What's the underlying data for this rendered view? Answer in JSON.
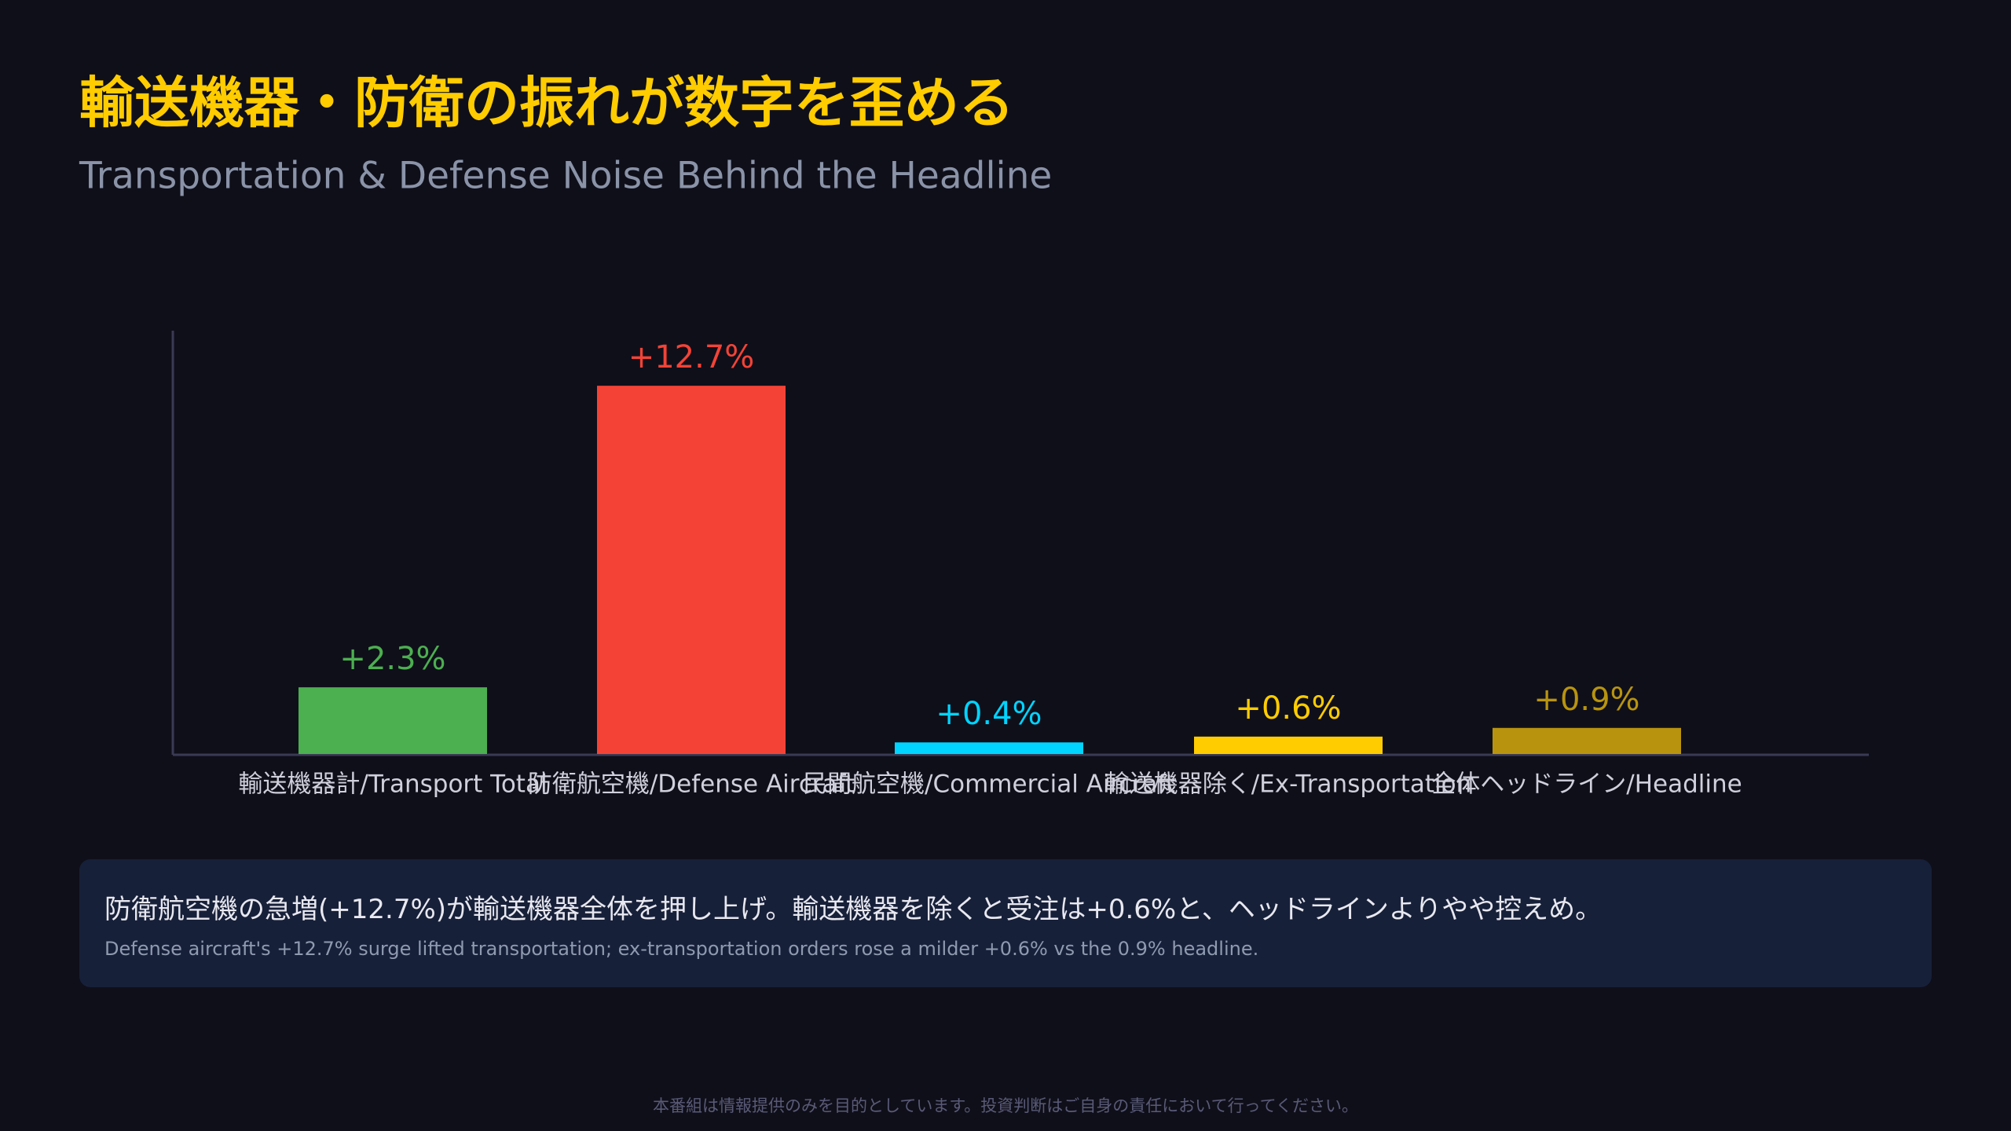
{
  "chart_data": {
    "type": "bar",
    "title": "輸送機器・防衛の振れが数字を歪める",
    "subtitle": "Transportation & Defense Noise Behind the Headline",
    "categories": [
      "輸送機器計/Transport Total",
      "防衛航空機/Defense Aircraft",
      "民間航空機/Commercial Aircraft",
      "輸送機器除く/Ex-Transportation",
      "全体ヘッドライン/Headline"
    ],
    "values": [
      2.3,
      12.7,
      0.4,
      0.6,
      0.9
    ],
    "value_labels": [
      "+2.3%",
      "+12.7%",
      "+0.4%",
      "+0.6%",
      "+0.9%"
    ],
    "colors": [
      "#4caf50",
      "#f44336",
      "#00d4ff",
      "#ffcc00",
      "#b8940e"
    ],
    "ylim": [
      0,
      14.6
    ]
  },
  "note": {
    "text": "防衛航空機の急増(+12.7%)が輸送機器全体を押し上げ。輸送機器を除くと受注は+0.6%と、ヘッドラインよりやや控えめ。",
    "subtext": "Defense aircraft's +12.7% surge lifted transportation; ex-transportation orders rose a milder +0.6% vs the 0.9% headline."
  },
  "footer": "本番組は情報提供のみを目的としています。投資判断はご自身の責任において行ってください。"
}
